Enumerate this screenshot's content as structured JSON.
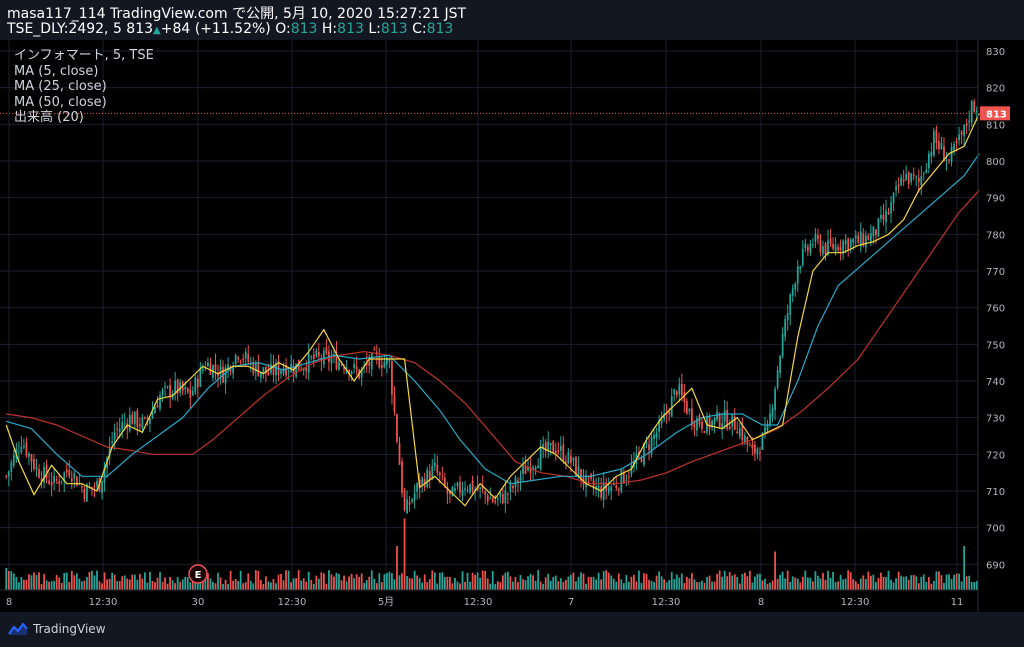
{
  "header": {
    "publish_line": "masa117_114 TradingView.com で公開, 5月 10, 2020 15:27:21 JST",
    "symbol_prefix": "TSE_DLY:2492, 5 813",
    "change": "+84 (+11.52%)",
    "o_label": "O:",
    "o_value": "813",
    "h_label": "H:",
    "h_value": "813",
    "l_label": "L:",
    "l_value": "813",
    "c_label": "C:",
    "c_value": "813"
  },
  "legend": {
    "symbol": "インフォマート, 5, TSE",
    "ma5": "MA (5, close)",
    "ma25": "MA (25, close)",
    "ma50": "MA (50, close)",
    "volume": "出来高 (20)"
  },
  "footer": {
    "brand": "TradingView"
  },
  "colors": {
    "up": "#26a69a",
    "down": "#ef5350",
    "ma5": "#f5d742",
    "ma25": "#28a9c9",
    "ma50": "#c1332b",
    "price_line": "#ef5350",
    "background": "#000000",
    "panel": "#131722"
  },
  "chart_data": {
    "type": "candlestick",
    "interval": "5 min",
    "ylim": [
      683,
      833
    ],
    "yticks": [
      690,
      700,
      710,
      720,
      730,
      740,
      750,
      760,
      770,
      780,
      790,
      800,
      810,
      820,
      830
    ],
    "last_price": "813",
    "x_ticks": [
      "8",
      "12:30",
      "30",
      "12:30",
      "5月",
      "12:30",
      "7",
      "12:30",
      "8",
      "12:30",
      "11"
    ],
    "earnings_marker": "E",
    "series": [
      {
        "name": "MA (5, close)"
      },
      {
        "name": "MA (25, close)"
      },
      {
        "name": "MA (50, close)"
      },
      {
        "name": "出来高 (20)"
      }
    ],
    "close_path": [
      [
        0,
        714
      ],
      [
        6,
        724
      ],
      [
        12,
        716
      ],
      [
        19,
        712
      ],
      [
        25,
        716
      ],
      [
        31,
        710
      ],
      [
        37,
        712
      ],
      [
        43,
        726
      ],
      [
        49,
        730
      ],
      [
        55,
        728
      ],
      [
        61,
        736
      ],
      [
        67,
        738
      ],
      [
        73,
        736
      ],
      [
        79,
        745
      ],
      [
        86,
        742
      ],
      [
        92,
        748
      ],
      [
        98,
        744
      ],
      [
        104,
        742
      ],
      [
        110,
        744
      ],
      [
        116,
        744
      ],
      [
        122,
        746
      ],
      [
        128,
        746
      ],
      [
        134,
        745
      ],
      [
        140,
        742
      ],
      [
        146,
        746
      ],
      [
        152,
        745
      ],
      [
        158,
        704
      ],
      [
        164,
        712
      ],
      [
        170,
        716
      ],
      [
        176,
        708
      ],
      [
        182,
        712
      ],
      [
        188,
        710
      ],
      [
        194,
        707
      ],
      [
        200,
        710
      ],
      [
        206,
        716
      ],
      [
        212,
        720
      ],
      [
        218,
        722
      ],
      [
        224,
        718
      ],
      [
        230,
        712
      ],
      [
        236,
        710
      ],
      [
        242,
        712
      ],
      [
        248,
        716
      ],
      [
        254,
        722
      ],
      [
        260,
        728
      ],
      [
        266,
        738
      ],
      [
        272,
        730
      ],
      [
        278,
        728
      ],
      [
        284,
        730
      ],
      [
        290,
        728
      ],
      [
        296,
        720
      ],
      [
        302,
        726
      ],
      [
        308,
        752
      ],
      [
        314,
        772
      ],
      [
        320,
        778
      ],
      [
        326,
        776
      ],
      [
        332,
        778
      ],
      [
        338,
        778
      ],
      [
        344,
        780
      ],
      [
        350,
        786
      ],
      [
        356,
        796
      ],
      [
        362,
        794
      ],
      [
        368,
        806
      ],
      [
        374,
        800
      ],
      [
        380,
        808
      ],
      [
        383,
        815
      ]
    ],
    "ma5_path": [
      [
        0,
        728
      ],
      [
        5,
        718
      ],
      [
        11,
        709
      ],
      [
        18,
        717
      ],
      [
        24,
        712
      ],
      [
        30,
        712
      ],
      [
        36,
        710
      ],
      [
        42,
        722
      ],
      [
        48,
        728
      ],
      [
        54,
        726
      ],
      [
        60,
        735
      ],
      [
        66,
        736
      ],
      [
        72,
        740
      ],
      [
        78,
        744
      ],
      [
        84,
        742
      ],
      [
        90,
        744
      ],
      [
        96,
        744
      ],
      [
        102,
        742
      ],
      [
        108,
        745
      ],
      [
        114,
        743
      ],
      [
        120,
        748
      ],
      [
        126,
        754
      ],
      [
        132,
        746
      ],
      [
        138,
        740
      ],
      [
        144,
        746
      ],
      [
        150,
        746
      ],
      [
        156,
        746
      ],
      [
        158,
        746
      ],
      [
        164,
        711
      ],
      [
        170,
        714
      ],
      [
        176,
        710
      ],
      [
        182,
        706
      ],
      [
        188,
        712
      ],
      [
        194,
        708
      ],
      [
        200,
        714
      ],
      [
        206,
        718
      ],
      [
        212,
        722
      ],
      [
        218,
        720
      ],
      [
        224,
        716
      ],
      [
        230,
        712
      ],
      [
        236,
        710
      ],
      [
        242,
        714
      ],
      [
        248,
        716
      ],
      [
        254,
        724
      ],
      [
        260,
        730
      ],
      [
        266,
        734
      ],
      [
        272,
        738
      ],
      [
        278,
        728
      ],
      [
        284,
        727
      ],
      [
        290,
        730
      ],
      [
        296,
        724
      ],
      [
        302,
        726
      ],
      [
        308,
        728
      ],
      [
        314,
        752
      ],
      [
        320,
        770
      ],
      [
        326,
        775
      ],
      [
        332,
        775
      ],
      [
        338,
        777
      ],
      [
        344,
        778
      ],
      [
        350,
        780
      ],
      [
        356,
        784
      ],
      [
        362,
        792
      ],
      [
        368,
        797
      ],
      [
        374,
        802
      ],
      [
        380,
        804
      ],
      [
        386,
        813
      ]
    ],
    "ma25_path": [
      [
        0,
        729
      ],
      [
        10,
        727
      ],
      [
        20,
        720
      ],
      [
        30,
        714
      ],
      [
        40,
        714
      ],
      [
        50,
        720
      ],
      [
        60,
        725
      ],
      [
        70,
        730
      ],
      [
        80,
        738
      ],
      [
        90,
        744
      ],
      [
        100,
        745
      ],
      [
        110,
        743
      ],
      [
        120,
        745
      ],
      [
        130,
        747
      ],
      [
        140,
        746
      ],
      [
        152,
        747
      ],
      [
        162,
        740
      ],
      [
        172,
        732
      ],
      [
        180,
        724
      ],
      [
        190,
        716
      ],
      [
        200,
        712
      ],
      [
        210,
        713
      ],
      [
        220,
        714
      ],
      [
        232,
        714
      ],
      [
        244,
        716
      ],
      [
        254,
        720
      ],
      [
        266,
        726
      ],
      [
        276,
        730
      ],
      [
        284,
        731
      ],
      [
        292,
        731
      ],
      [
        300,
        728
      ],
      [
        306,
        728
      ],
      [
        314,
        740
      ],
      [
        322,
        755
      ],
      [
        330,
        766
      ],
      [
        340,
        772
      ],
      [
        350,
        778
      ],
      [
        360,
        784
      ],
      [
        370,
        790
      ],
      [
        380,
        796
      ],
      [
        386,
        802
      ]
    ],
    "ma50_path": [
      [
        0,
        731
      ],
      [
        10,
        730
      ],
      [
        20,
        728
      ],
      [
        30,
        725
      ],
      [
        40,
        722
      ],
      [
        50,
        721
      ],
      [
        58,
        720
      ],
      [
        66,
        720
      ],
      [
        74,
        720
      ],
      [
        82,
        724
      ],
      [
        92,
        730
      ],
      [
        102,
        736
      ],
      [
        112,
        741
      ],
      [
        122,
        745
      ],
      [
        132,
        747
      ],
      [
        142,
        748
      ],
      [
        152,
        747
      ],
      [
        162,
        745
      ],
      [
        172,
        740
      ],
      [
        182,
        734
      ],
      [
        192,
        726
      ],
      [
        202,
        718
      ],
      [
        212,
        715
      ],
      [
        222,
        714
      ],
      [
        232,
        712
      ],
      [
        242,
        712
      ],
      [
        252,
        713
      ],
      [
        262,
        715
      ],
      [
        272,
        718
      ],
      [
        284,
        721
      ],
      [
        296,
        724
      ],
      [
        306,
        727
      ],
      [
        316,
        732
      ],
      [
        326,
        738
      ],
      [
        338,
        746
      ],
      [
        348,
        756
      ],
      [
        358,
        766
      ],
      [
        368,
        776
      ],
      [
        378,
        786
      ],
      [
        386,
        792
      ]
    ],
    "volume_spikes": [
      [
        0,
        40
      ],
      [
        41,
        20
      ],
      [
        78,
        40
      ],
      [
        91,
        20
      ],
      [
        155,
        80
      ],
      [
        158,
        130
      ],
      [
        184,
        15
      ],
      [
        206,
        18
      ],
      [
        228,
        32
      ],
      [
        242,
        15
      ],
      [
        265,
        20
      ],
      [
        268,
        30
      ],
      [
        280,
        15
      ],
      [
        305,
        70
      ],
      [
        341,
        20
      ],
      [
        378,
        30
      ],
      [
        380,
        80
      ]
    ]
  }
}
